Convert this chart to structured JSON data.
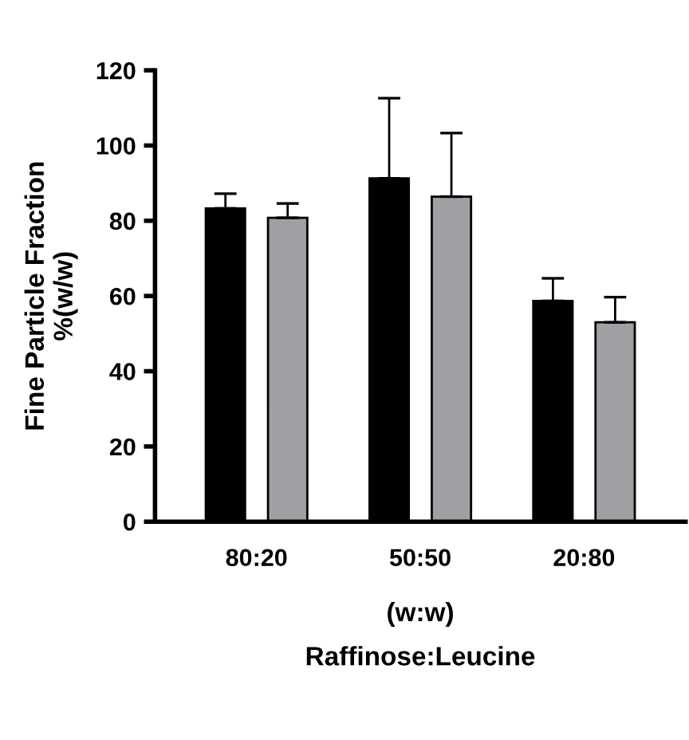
{
  "chart_data": {
    "type": "bar",
    "categories": [
      "80:20",
      "50:50",
      "20:80"
    ],
    "xlabel": "(w:w)\nRaffinose:Leucine",
    "ylabel": "Fine Particle Fraction\n%(w/w)",
    "series": [
      {
        "color": "#000000",
        "values": [
          83.3,
          91.3,
          58.7
        ],
        "errors": [
          [
            83.3,
            87.2
          ],
          [
            91.3,
            112.6
          ],
          [
            58.7,
            64.7
          ]
        ]
      },
      {
        "color": "#a0a0a4",
        "values": [
          80.8,
          86.4,
          53.0
        ],
        "errors": [
          [
            80.8,
            84.6
          ],
          [
            86.4,
            103.3
          ],
          [
            53.0,
            59.7
          ]
        ]
      }
    ],
    "ylim": [
      0,
      120
    ],
    "yticks": [
      0,
      20,
      40,
      60,
      80,
      100,
      120
    ],
    "grid": false,
    "legend": false
  }
}
